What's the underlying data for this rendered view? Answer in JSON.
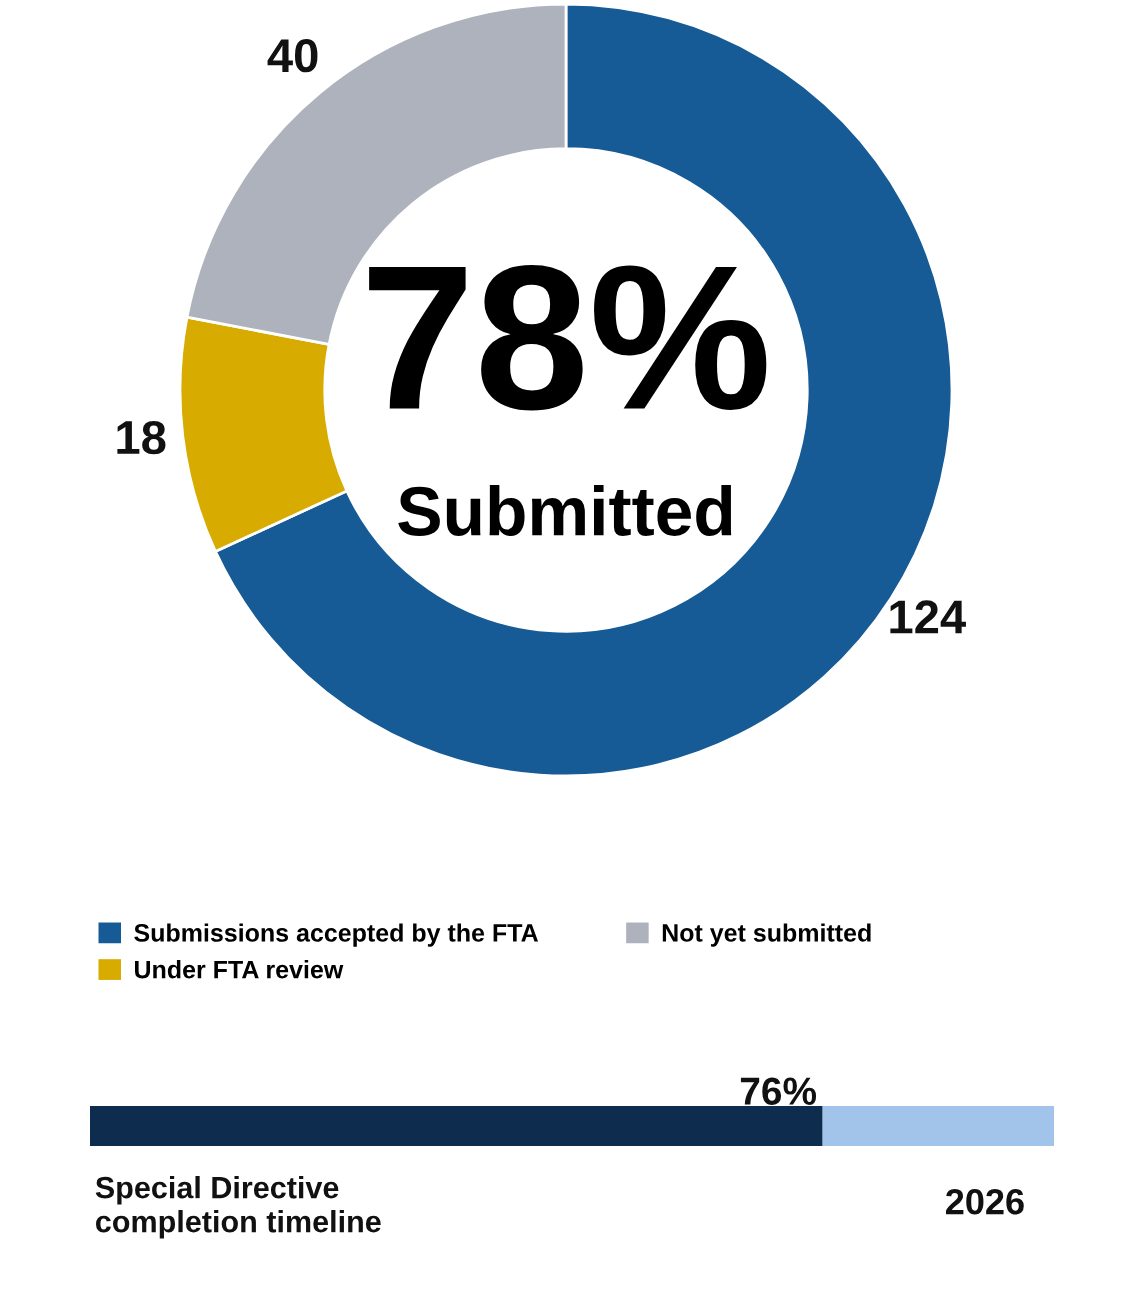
{
  "chart_data": [
    {
      "type": "donut",
      "categories": [
        "Submissions accepted by the FTA",
        "Under FTA review",
        "Not yet submitted"
      ],
      "values": [
        124,
        18,
        40
      ],
      "colors": [
        "#165a96",
        "#d8ab00",
        "#adb2bd"
      ],
      "data_labels": true,
      "legend": "bottom",
      "annotations": [
        "78%",
        "Submitted"
      ]
    },
    {
      "type": "bar",
      "orientation": "horizontal",
      "stacked": true,
      "categories": [
        null
      ],
      "series": [
        {
          "color": "#0e2d4e",
          "values": [
            76
          ],
          "value_labels": [
            "76%"
          ]
        },
        {
          "color": "#a2c4ea",
          "values": [
            24
          ]
        }
      ],
      "xlim": [
        0,
        100
      ],
      "tick_labels": false,
      "annotations": [
        "Special Directive completion timeline",
        "2026"
      ]
    }
  ]
}
